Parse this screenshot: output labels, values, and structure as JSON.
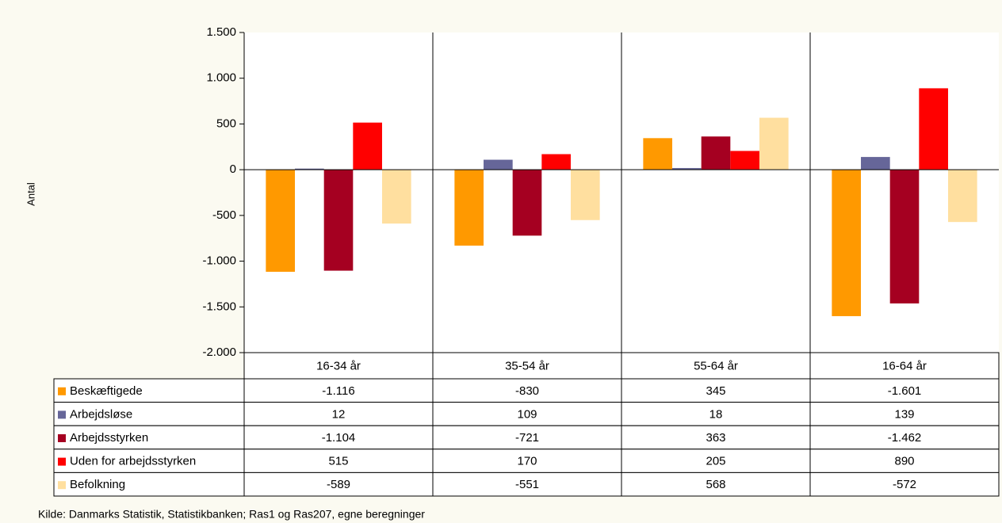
{
  "chart_data": {
    "type": "bar",
    "y_label": "Antal",
    "categories": [
      "16-34 år",
      "35-54 år",
      "55-64 år",
      "16-64 år"
    ],
    "series": [
      {
        "name": "Beskæftigede",
        "color": "#ff9900",
        "values": [
          -1116,
          -830,
          345,
          -1601
        ],
        "value_labels": [
          "-1.116",
          "-830",
          "345",
          "-1.601"
        ]
      },
      {
        "name": "Arbejdsløse",
        "color": "#666699",
        "values": [
          12,
          109,
          18,
          139
        ]
      },
      {
        "name": "Arbejdsstyrken",
        "color": "#a50021",
        "values": [
          -1104,
          -721,
          363,
          -1462
        ],
        "value_labels": [
          "-1.104",
          "-721",
          "363",
          "-1.462"
        ]
      },
      {
        "name": "Uden for arbejdsstyrken",
        "color": "#ff0000",
        "values": [
          515,
          170,
          205,
          890
        ]
      },
      {
        "name": "Befolkning",
        "color": "#ffdf9f",
        "values": [
          -589,
          -551,
          568,
          -572
        ]
      }
    ],
    "ylim": [
      -2000,
      1500
    ],
    "yticks": [
      {
        "value": -2000,
        "label": "-2.000"
      },
      {
        "value": -1500,
        "label": "-1.500"
      },
      {
        "value": -1000,
        "label": "-1.000"
      },
      -500,
      0,
      500,
      {
        "value": 1000,
        "label": "1.000"
      },
      {
        "value": 1500,
        "label": "1.500"
      }
    ],
    "source": "Kilde: Danmarks Statistik, Statistikbanken; Ras1 og Ras207, egne beregninger"
  }
}
